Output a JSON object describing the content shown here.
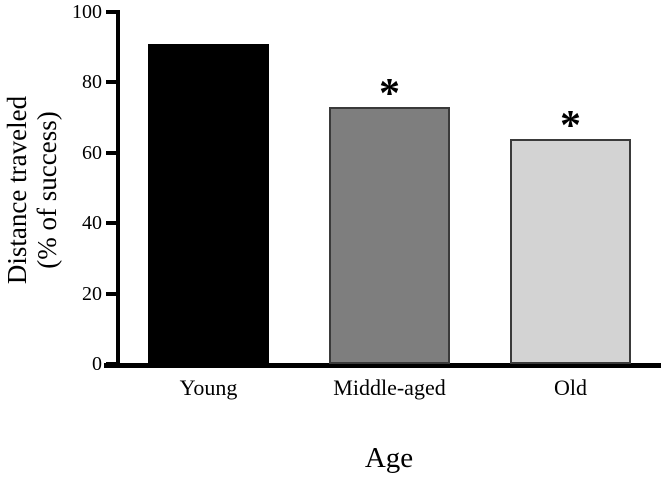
{
  "chart_data": {
    "type": "bar",
    "title": "",
    "xlabel": "Age",
    "ylabel": "Distance traveled (% of success)",
    "ylabel_lines": [
      "Distance traveled",
      "(% of success)"
    ],
    "categories": [
      "Young",
      "Middle-aged",
      "Old"
    ],
    "values": [
      91,
      73,
      64
    ],
    "bar_fill_colors": [
      "#000000",
      "#7e7e7e",
      "#d3d3d3"
    ],
    "bar_border_colors": [
      "#000000",
      "#3a3a3a",
      "#3a3a3a"
    ],
    "annotations": [
      "",
      "*",
      "*"
    ],
    "ylim": [
      0,
      100
    ],
    "yticks": [
      0,
      20,
      40,
      60,
      80,
      100
    ],
    "grid": false,
    "legend_position": "none",
    "axis_color": "#000000",
    "background_color": "#ffffff"
  }
}
